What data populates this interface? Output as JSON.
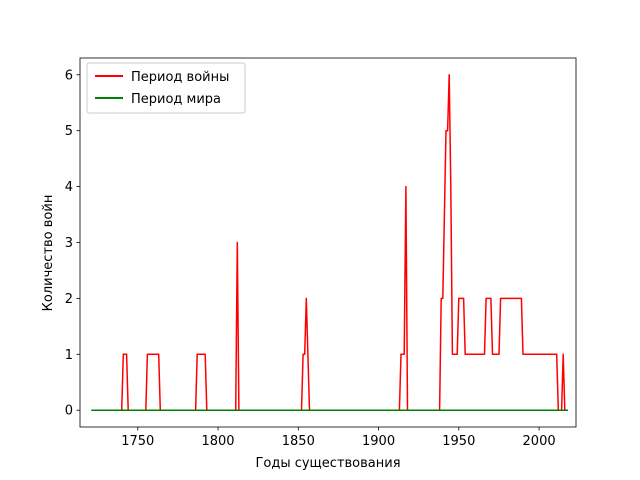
{
  "chart_data": {
    "type": "line",
    "title": "",
    "xlabel": "Годы существования",
    "ylabel": "Количество войн",
    "xlim": [
      1714,
      2023
    ],
    "ylim": [
      -0.3,
      6.3
    ],
    "xticks": [
      1750,
      1800,
      1850,
      1900,
      1950,
      2000
    ],
    "yticks": [
      0,
      1,
      2,
      3,
      4,
      5,
      6
    ],
    "grid": false,
    "legend_position": "upper left",
    "series": [
      {
        "name": "Период войны",
        "color": "#ff0000",
        "points": [
          [
            1740,
            0
          ],
          [
            1741,
            1
          ],
          [
            1743,
            1
          ],
          [
            1744,
            0
          ],
          [
            1755,
            0
          ],
          [
            1756,
            1
          ],
          [
            1763,
            1
          ],
          [
            1764,
            0
          ],
          [
            1786,
            0
          ],
          [
            1787,
            1
          ],
          [
            1792,
            1
          ],
          [
            1793,
            0
          ],
          [
            1811,
            0
          ],
          [
            1812,
            3
          ],
          [
            1813,
            0
          ],
          [
            1852,
            0
          ],
          [
            1853,
            1
          ],
          [
            1854,
            1
          ],
          [
            1855,
            2
          ],
          [
            1856,
            1
          ],
          [
            1857,
            0
          ],
          [
            1913,
            0
          ],
          [
            1914,
            1
          ],
          [
            1916,
            1
          ],
          [
            1917,
            4
          ],
          [
            1918,
            0
          ],
          [
            1938,
            0
          ],
          [
            1939,
            2
          ],
          [
            1940,
            2
          ],
          [
            1942,
            5
          ],
          [
            1943,
            5
          ],
          [
            1944,
            6
          ],
          [
            1945,
            4
          ],
          [
            1946,
            1
          ],
          [
            1949,
            1
          ],
          [
            1950,
            2
          ],
          [
            1953,
            2
          ],
          [
            1954,
            1
          ],
          [
            1966,
            1
          ],
          [
            1967,
            2
          ],
          [
            1970,
            2
          ],
          [
            1971,
            1
          ],
          [
            1975,
            1
          ],
          [
            1976,
            2
          ],
          [
            1989,
            2
          ],
          [
            1990,
            1
          ],
          [
            2011,
            1
          ],
          [
            2012,
            0
          ],
          [
            2014,
            0
          ],
          [
            2015,
            1
          ],
          [
            2016,
            0
          ],
          [
            2017,
            0
          ]
        ]
      },
      {
        "name": "Период мира",
        "color": "#008000",
        "points": [
          [
            1721,
            0
          ],
          [
            1740,
            0
          ],
          [
            1744,
            0
          ],
          [
            1755,
            0
          ],
          [
            1764,
            0
          ],
          [
            1786,
            0
          ],
          [
            1793,
            0
          ],
          [
            1811,
            0
          ],
          [
            1813,
            0
          ],
          [
            1852,
            0
          ],
          [
            1857,
            0
          ],
          [
            1913,
            0
          ],
          [
            1918,
            0
          ],
          [
            1938,
            0
          ],
          [
            2012,
            0
          ],
          [
            2014,
            0
          ],
          [
            2016,
            0
          ],
          [
            2018,
            0
          ]
        ]
      }
    ]
  }
}
